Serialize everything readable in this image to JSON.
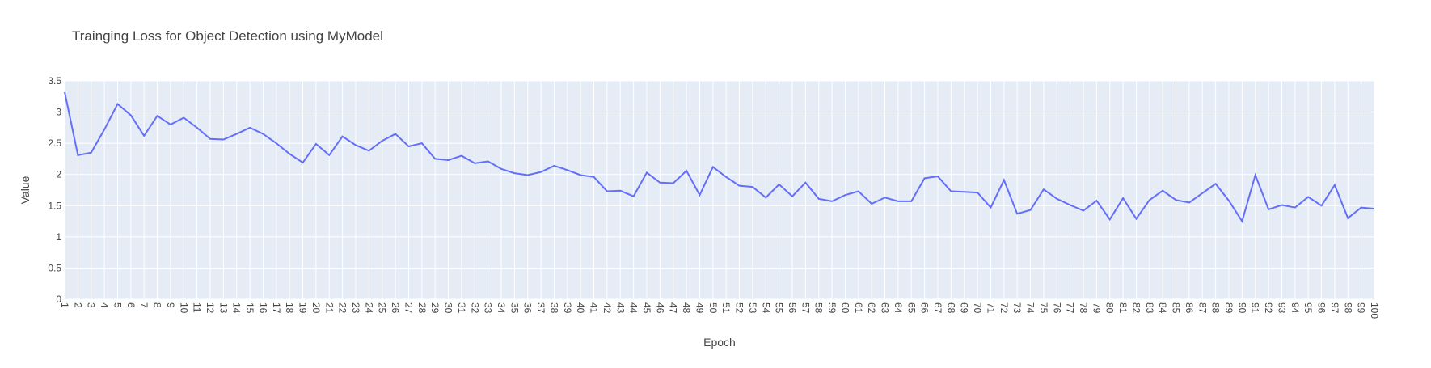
{
  "chart_data": {
    "type": "line",
    "title": "Trainging Loss for Object Detection using MyModel",
    "xlabel": "Epoch",
    "ylabel": "Value",
    "xlim": [
      1,
      100
    ],
    "ylim": [
      0,
      3.5
    ],
    "yticks": [
      0,
      0.5,
      1,
      1.5,
      2,
      2.5,
      3,
      3.5
    ],
    "grid": true,
    "legend": "none",
    "colors": {
      "line": "#636efa",
      "plot_bg": "#e5ecf6",
      "grid": "#ffffff"
    },
    "x": [
      1,
      2,
      3,
      4,
      5,
      6,
      7,
      8,
      9,
      10,
      11,
      12,
      13,
      14,
      15,
      16,
      17,
      18,
      19,
      20,
      21,
      22,
      23,
      24,
      25,
      26,
      27,
      28,
      29,
      30,
      31,
      32,
      33,
      34,
      35,
      36,
      37,
      38,
      39,
      40,
      41,
      42,
      43,
      44,
      45,
      46,
      47,
      48,
      49,
      50,
      51,
      52,
      53,
      54,
      55,
      56,
      57,
      58,
      59,
      60,
      61,
      62,
      63,
      64,
      65,
      66,
      67,
      68,
      69,
      70,
      71,
      72,
      73,
      74,
      75,
      76,
      77,
      78,
      79,
      80,
      81,
      82,
      83,
      84,
      85,
      86,
      87,
      88,
      89,
      90,
      91,
      92,
      93,
      94,
      95,
      96,
      97,
      98,
      99,
      100
    ],
    "series": [
      {
        "values": [
          3.32,
          2.31,
          2.35,
          2.72,
          3.13,
          2.95,
          2.62,
          2.94,
          2.8,
          2.91,
          2.75,
          2.57,
          2.56,
          2.65,
          2.75,
          2.65,
          2.5,
          2.33,
          2.19,
          2.49,
          2.31,
          2.61,
          2.47,
          2.38,
          2.54,
          2.65,
          2.45,
          2.5,
          2.25,
          2.23,
          2.3,
          2.18,
          2.21,
          2.09,
          2.02,
          1.99,
          2.04,
          2.14,
          2.07,
          1.99,
          1.96,
          1.73,
          1.74,
          1.65,
          2.03,
          1.87,
          1.86,
          2.06,
          1.67,
          2.12,
          1.96,
          1.82,
          1.8,
          1.63,
          1.84,
          1.65,
          1.87,
          1.61,
          1.57,
          1.67,
          1.73,
          1.53,
          1.63,
          1.57,
          1.57,
          1.94,
          1.97,
          1.73,
          1.72,
          1.71,
          1.47,
          1.91,
          1.37,
          1.43,
          1.76,
          1.61,
          1.51,
          1.42,
          1.58,
          1.28,
          1.62,
          1.29,
          1.59,
          1.74,
          1.59,
          1.55,
          1.7,
          1.85,
          1.58,
          1.25,
          1.99,
          1.44,
          1.51,
          1.47,
          1.64,
          1.5,
          1.83,
          1.3,
          1.47,
          1.45
        ]
      }
    ]
  }
}
